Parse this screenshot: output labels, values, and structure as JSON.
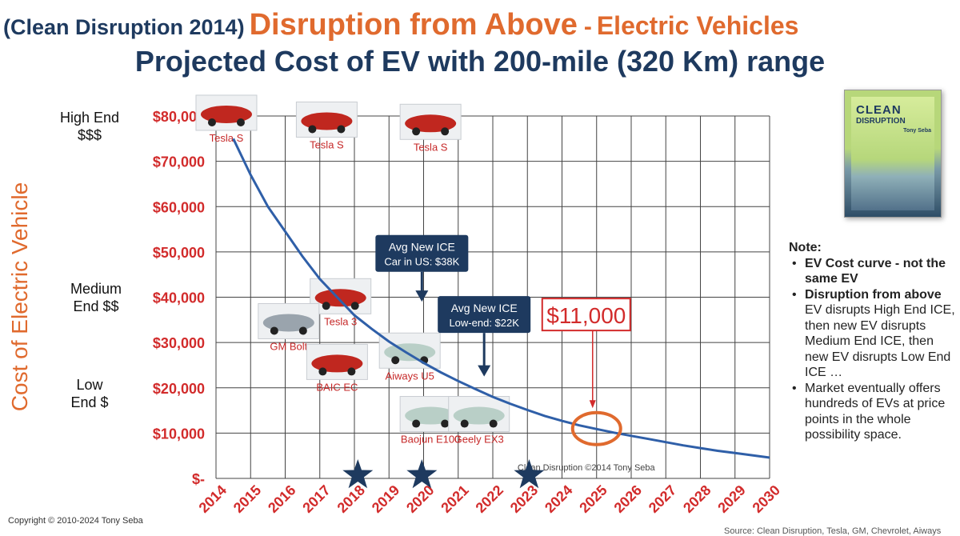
{
  "title": {
    "prefix": "(Clean Disruption 2014)",
    "main": "Disruption from Above",
    "dash": "-",
    "sub": "Electric Vehicles"
  },
  "subtitle": "Projected Cost of EV with 200-mile (320 Km) range",
  "y_axis_label": "Cost of Electric Vehicle",
  "segments": {
    "high_1": "High End",
    "high_2": "$$$",
    "medium_1": "Medium",
    "medium_2": "End $$",
    "low_1": "Low",
    "low_2": "End $"
  },
  "book": {
    "title_1": "CLEAN",
    "title_2": "DISRUPTION",
    "author": "Tony Seba"
  },
  "notes": {
    "heading": "Note:",
    "items": [
      {
        "bold": "EV Cost curve - not the same EV",
        "text": ""
      },
      {
        "bold": "Disruption from above",
        "text": " EV disrupts High End ICE, then new EV disrupts Medium End ICE, then new EV disrupts Low End ICE …"
      },
      {
        "bold": "",
        "text": "Market eventually offers hundreds of EVs at price points in the whole possibility space."
      }
    ]
  },
  "copyright": "Copyright © 2010-2024 Tony Seba",
  "source": "Source: Clean Disruption, Tesla, GM, Chevrolet, Aiways",
  "chart_data": {
    "type": "line",
    "x": [
      2014,
      2015,
      2016,
      2017,
      2018,
      2019,
      2020,
      2021,
      2022,
      2023,
      2024,
      2025,
      2026,
      2027,
      2028,
      2029,
      2030
    ],
    "x_tick_labels": [
      "2014",
      "2015",
      "2016",
      "2017",
      "2018",
      "2019",
      "2020",
      "2021",
      "2022",
      "2023",
      "2024",
      "2025",
      "2026",
      "2027",
      "2028",
      "2029",
      "2030"
    ],
    "y_ticks": [
      0,
      10000,
      20000,
      30000,
      40000,
      50000,
      60000,
      70000,
      80000
    ],
    "y_tick_labels": [
      "$-",
      "$10,000",
      "$20,000",
      "$30,000",
      "$40,000",
      "$50,000",
      "$60,000",
      "$70,000",
      "$80,000"
    ],
    "ylim": [
      0,
      80000
    ],
    "xlim": [
      2014,
      2030
    ],
    "grid": true,
    "series": [
      {
        "color": "#2f5fa8",
        "x": [
          2014.5,
          2015,
          2015.5,
          2016,
          2016.5,
          2017,
          2017.5,
          2018,
          2018.5,
          2019,
          2019.5,
          2020,
          2020.5,
          2021,
          2021.5,
          2022,
          2022.5,
          2023,
          2023.5,
          2024,
          2024.5,
          2025,
          2025.5,
          2026,
          2026.5,
          2027,
          2027.5,
          2028,
          2028.5,
          2029,
          2029.5,
          2030
        ],
        "y": [
          75000,
          67000,
          60000,
          54500,
          49000,
          44000,
          40000,
          36000,
          33000,
          30200,
          27800,
          25500,
          23400,
          21500,
          19700,
          18000,
          16500,
          15100,
          13800,
          12700,
          11700,
          10900,
          10100,
          9400,
          8700,
          8000,
          7300,
          6700,
          6100,
          5600,
          5100,
          4600
        ]
      }
    ],
    "car_labels": [
      {
        "text": "Tesla S",
        "x": 2014.3,
        "y": 74000
      },
      {
        "text": "Tesla S",
        "x": 2017.2,
        "y": 72500
      },
      {
        "text": "Tesla S",
        "x": 2020.2,
        "y": 72000
      },
      {
        "text": "Tesla 3",
        "x": 2017.6,
        "y": 33500
      },
      {
        "text": "GM Bolt",
        "x": 2016.1,
        "y": 28000
      },
      {
        "text": "BAIC EC",
        "x": 2017.5,
        "y": 19000
      },
      {
        "text": "Aiways U5",
        "x": 2019.6,
        "y": 21500
      },
      {
        "text": "Baojun E100",
        "x": 2020.2,
        "y": 7500
      },
      {
        "text": "Geely EX3",
        "x": 2021.6,
        "y": 7500
      }
    ],
    "annotations": [
      {
        "text_1": "Avg New ICE",
        "text_2": "Car in US: $38K",
        "x": 2019.95,
        "y": 49500,
        "arrow_to_y": 39000
      },
      {
        "text_1": "Avg New ICE",
        "text_2": "Low-end: $22K",
        "x": 2021.75,
        "y": 36000,
        "arrow_to_y": 22500
      },
      {
        "text": "$11,000",
        "x": 2024.7,
        "y": 30000,
        "arrow_to_y": 15500
      },
      {
        "text": "Clean Disruption ©2014 Tony Seba",
        "x": 2024.7,
        "y": 1800
      }
    ],
    "highlight_ellipse": {
      "x": 2025.0,
      "y": 11000
    },
    "star_markers": [
      2018.1,
      2019.95,
      2023.05
    ]
  }
}
